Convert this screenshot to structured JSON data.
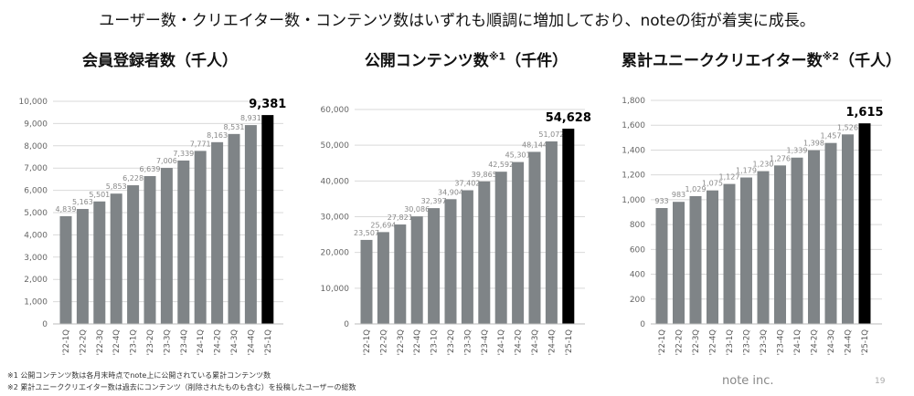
{
  "headline": "ユーザー数・クリエイター数・コンテンツ数はいずれも順調に増加しており、noteの街が着実に成長。",
  "footnotes": [
    "※1 公開コンテンツ数は各月末時点でnote上に公開されている累計コンテンツ数",
    "※2 累計ユニーククリエイター数は過去にコンテンツ（削除されたものも含む）を投稿したユーザーの総数"
  ],
  "company": "note inc.",
  "page_number": "19",
  "colors": {
    "bar": "#7f8487",
    "highlight": "#000000",
    "grid": "#d9d9d9",
    "label": "#888888"
  },
  "chart_data": [
    {
      "type": "bar",
      "title": "会員登録者数（千人）",
      "title_main": "会員登録者数",
      "title_sup": "",
      "title_unit": "（千人）",
      "categories": [
        "'22-1Q",
        "'22-2Q",
        "'22-3Q",
        "'22-4Q",
        "'23-1Q",
        "'23-2Q",
        "'23-3Q",
        "'23-4Q",
        "'24-1Q",
        "'24-2Q",
        "'24-3Q",
        "'24-4Q",
        "'25-1Q"
      ],
      "values": [
        4839,
        5163,
        5501,
        5853,
        6228,
        6639,
        7006,
        7339,
        7771,
        8163,
        8531,
        8931,
        9381
      ],
      "value_labels": [
        "4,839",
        "5,163",
        "5,501",
        "5,853",
        "6,228",
        "6,639",
        "7,006",
        "7,339",
        "7,771",
        "8,163",
        "8,531",
        "8,931",
        "9,381"
      ],
      "yticks": [
        "0",
        "1,000",
        "2,000",
        "3,000",
        "4,000",
        "5,000",
        "6,000",
        "7,000",
        "8,000",
        "9,000",
        "10,000"
      ],
      "ylim": [
        0,
        10000
      ],
      "ytick_step": 1000,
      "grid": true,
      "highlight_last": true
    },
    {
      "type": "bar",
      "title": "公開コンテンツ数※1（千件）",
      "title_main": "公開コンテンツ数",
      "title_sup": "※1",
      "title_unit": "（千件）",
      "categories": [
        "'22-1Q",
        "'22-2Q",
        "'22-3Q",
        "'22-4Q",
        "'23-1Q",
        "'23-2Q",
        "'23-3Q",
        "'23-4Q",
        "'24-1Q",
        "'24-2Q",
        "'24-3Q",
        "'24-4Q",
        "'25-1Q"
      ],
      "values": [
        23507,
        25694,
        27821,
        30086,
        32397,
        34904,
        37402,
        39865,
        42592,
        45301,
        48144,
        51072,
        54628
      ],
      "value_labels": [
        "23,507",
        "25,694",
        "27,821",
        "30,086",
        "32,397",
        "34,904",
        "37,402",
        "39,865",
        "42,592",
        "45,301",
        "48,144",
        "51,072",
        "54,628"
      ],
      "yticks": [
        "0",
        "10,000",
        "20,000",
        "30,000",
        "40,000",
        "50,000",
        "60,000"
      ],
      "ylim": [
        0,
        60000
      ],
      "ytick_step": 10000,
      "grid": true,
      "highlight_last": true
    },
    {
      "type": "bar",
      "title": "累計ユニーククリエイター数※2（千人）",
      "title_main": "累計ユニーククリエイター数",
      "title_sup": "※2",
      "title_unit": "（千人）",
      "categories": [
        "'22-1Q",
        "'22-2Q",
        "'22-3Q",
        "'22-4Q",
        "'23-1Q",
        "'23-2Q",
        "'23-3Q",
        "'23-4Q",
        "'24-1Q",
        "'24-2Q",
        "'24-3Q",
        "'24-4Q",
        "'25-1Q"
      ],
      "values": [
        933,
        983,
        1029,
        1075,
        1127,
        1179,
        1230,
        1276,
        1339,
        1398,
        1457,
        1526,
        1615
      ],
      "value_labels": [
        "933",
        "983",
        "1,029",
        "1,075",
        "1,127",
        "1,179",
        "1,230",
        "1,276",
        "1,339",
        "1,398",
        "1,457",
        "1,526",
        "1,615"
      ],
      "yticks": [
        "0",
        "200",
        "400",
        "600",
        "800",
        "1,000",
        "1,200",
        "1,400",
        "1,600",
        "1,800"
      ],
      "ylim": [
        0,
        1800
      ],
      "ytick_step": 200,
      "grid": true,
      "highlight_last": true
    }
  ]
}
